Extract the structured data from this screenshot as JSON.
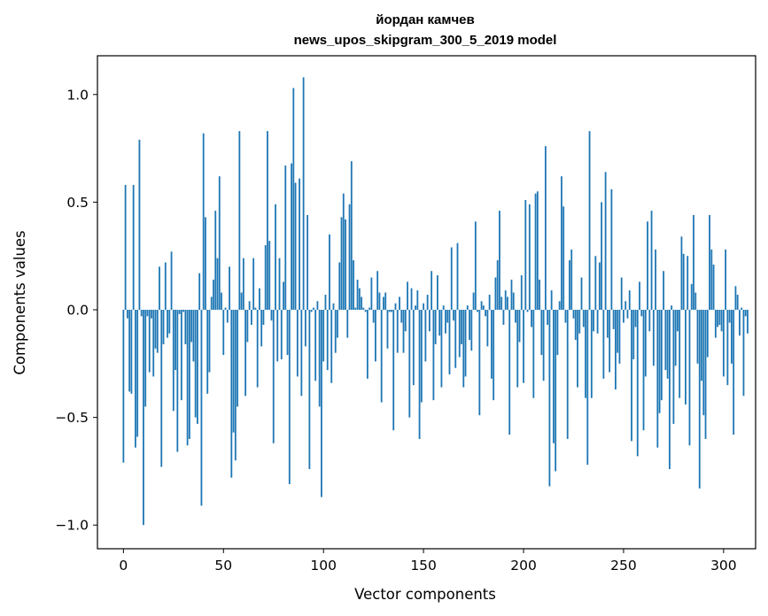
{
  "chart_data": {
    "type": "bar",
    "title": [
      "йордан камчев",
      "news_upos_skipgram_300_5_2019 model"
    ],
    "xlabel": "Vector components",
    "ylabel": "Components values",
    "xlim": [
      -13,
      316
    ],
    "ylim": [
      -1.11,
      1.18
    ],
    "xticks": [
      0,
      50,
      100,
      150,
      200,
      250,
      300
    ],
    "xtick_labels": [
      "0",
      "50",
      "100",
      "150",
      "200",
      "250",
      "300"
    ],
    "yticks": [
      -1.0,
      -0.5,
      0.0,
      0.5,
      1.0
    ],
    "ytick_labels": [
      "−1.0",
      "−0.5",
      "0.0",
      "0.5",
      "1.0"
    ],
    "bar_color": "#1f77b4",
    "grid": false,
    "values": [
      -0.71,
      0.58,
      -0.04,
      -0.38,
      -0.39,
      0.58,
      -0.64,
      -0.59,
      0.79,
      -0.03,
      -1.0,
      -0.45,
      -0.03,
      -0.29,
      -0.04,
      -0.31,
      -0.18,
      -0.2,
      0.2,
      -0.73,
      -0.16,
      0.22,
      -0.13,
      -0.11,
      0.27,
      -0.47,
      -0.28,
      -0.66,
      -0.02,
      -0.42,
      -0.01,
      -0.16,
      -0.63,
      -0.6,
      -0.15,
      -0.24,
      -0.5,
      -0.53,
      0.17,
      -0.91,
      0.82,
      0.43,
      -0.39,
      -0.29,
      0.06,
      0.14,
      0.46,
      0.24,
      0.62,
      0.08,
      -0.21,
      0.01,
      -0.06,
      0.2,
      -0.78,
      -0.57,
      -0.7,
      -0.45,
      0.83,
      0.08,
      0.24,
      -0.4,
      -0.15,
      0.04,
      -0.07,
      0.24,
      0.01,
      -0.36,
      0.1,
      -0.17,
      -0.07,
      0.3,
      0.83,
      0.32,
      -0.05,
      -0.62,
      0.49,
      -0.24,
      0.24,
      -0.23,
      0.13,
      0.67,
      -0.21,
      -0.81,
      0.68,
      1.03,
      0.59,
      -0.31,
      0.61,
      -0.4,
      1.08,
      -0.17,
      0.44,
      -0.74,
      -0.01,
      0.01,
      -0.33,
      0.04,
      -0.45,
      -0.87,
      -0.24,
      0.07,
      -0.28,
      0.35,
      -0.34,
      0.03,
      -0.2,
      -0.13,
      0.22,
      0.43,
      0.54,
      0.42,
      -0.13,
      0.49,
      0.69,
      0.23,
      0.01,
      0.14,
      0.1,
      0.06,
      0.01,
      -0.01,
      -0.32,
      0.01,
      0.15,
      -0.06,
      -0.24,
      0.18,
      0.08,
      -0.43,
      0.06,
      0.08,
      -0.18,
      -0.01,
      -0.01,
      -0.56,
      0.03,
      -0.2,
      0.06,
      -0.06,
      -0.2,
      -0.1,
      0.13,
      -0.5,
      0.1,
      -0.35,
      0.02,
      0.09,
      -0.6,
      -0.43,
      0.03,
      -0.24,
      0.07,
      -0.1,
      0.18,
      -0.42,
      -0.16,
      0.16,
      -0.12,
      -0.36,
      0.02,
      -0.11,
      -0.06,
      -0.3,
      0.29,
      -0.05,
      -0.27,
      0.31,
      -0.22,
      -0.16,
      -0.36,
      -0.31,
      0.02,
      -0.14,
      -0.19,
      0.08,
      0.41,
      -0.01,
      -0.49,
      0.04,
      0.02,
      -0.03,
      -0.17,
      0.07,
      -0.32,
      -0.42,
      0.15,
      0.23,
      0.46,
      0.06,
      -0.07,
      0.09,
      0.06,
      -0.58,
      0.14,
      0.08,
      -0.06,
      -0.36,
      -0.15,
      0.16,
      -0.34,
      0.51,
      -0.01,
      0.49,
      -0.08,
      -0.41,
      0.54,
      0.55,
      0.14,
      -0.21,
      -0.33,
      0.76,
      -0.07,
      -0.82,
      0.09,
      -0.62,
      -0.75,
      -0.21,
      0.04,
      0.62,
      0.48,
      -0.06,
      -0.6,
      0.23,
      0.28,
      -0.04,
      -0.14,
      -0.36,
      -0.11,
      0.15,
      -0.08,
      -0.41,
      -0.72,
      0.83,
      -0.41,
      -0.1,
      0.25,
      -0.11,
      0.22,
      0.5,
      -0.32,
      0.64,
      -0.13,
      -0.29,
      0.56,
      -0.09,
      -0.37,
      -0.2,
      -0.25,
      0.15,
      -0.06,
      0.04,
      -0.04,
      0.09,
      -0.61,
      -0.23,
      -0.08,
      -0.68,
      0.13,
      -0.03,
      -0.56,
      -0.31,
      0.41,
      -0.1,
      0.46,
      -0.26,
      0.28,
      -0.64,
      -0.48,
      -0.42,
      0.18,
      -0.28,
      -0.32,
      -0.74,
      0.02,
      -0.53,
      -0.26,
      -0.1,
      -0.41,
      0.34,
      0.26,
      -0.44,
      0.25,
      -0.63,
      0.12,
      0.44,
      0.08,
      -0.25,
      -0.83,
      -0.33,
      -0.49,
      -0.6,
      -0.22,
      0.44,
      0.28,
      0.21,
      -0.13,
      -0.08,
      -0.07,
      -0.1,
      -0.31,
      0.28,
      -0.35,
      -0.06,
      -0.25,
      -0.58,
      0.11,
      0.07,
      -0.12,
      0.01,
      -0.4,
      -0.03,
      -0.11
    ]
  }
}
